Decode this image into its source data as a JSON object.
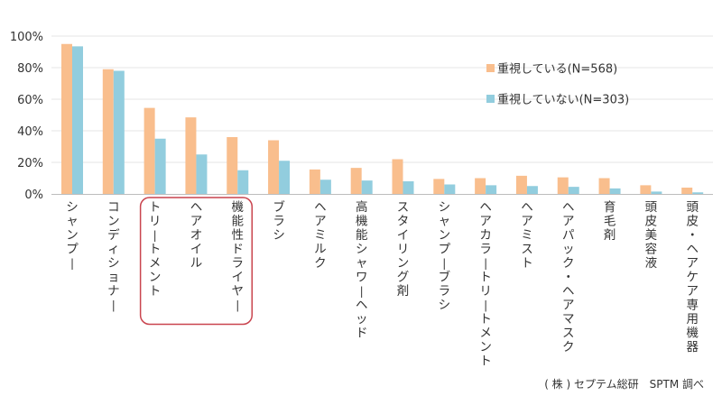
{
  "chart_data": {
    "type": "bar",
    "categories": [
      "シャンプー",
      "コンディショナー",
      "トリートメント",
      "ヘアオイル",
      "機能性ドライヤー",
      "ブラシ",
      "ヘアミルク",
      "高機能シャワーヘッド",
      "スタイリング剤",
      "シャンプーブラシ",
      "ヘアカラートリートメント",
      "ヘアミスト",
      "ヘアパック・ヘアマスク",
      "育毛剤",
      "頭皮美容液",
      "頭皮・ヘアケア専用機器"
    ],
    "series": [
      {
        "name": "重視している(N=568)",
        "color": "#F9BE8D",
        "values": [
          95,
          79,
          54.5,
          48.5,
          36,
          34,
          15.5,
          16.5,
          22,
          9.5,
          10,
          11.5,
          10.5,
          10,
          5.5,
          4
        ]
      },
      {
        "name": "重視していない(N=303)",
        "color": "#92CDDE",
        "values": [
          93.5,
          78,
          35,
          25,
          15,
          21,
          9,
          8.5,
          8,
          6,
          5.5,
          5,
          4.5,
          3.5,
          1.5,
          1
        ]
      }
    ],
    "ylim": [
      0,
      100
    ],
    "yticks": [
      "0%",
      "20%",
      "40%",
      "60%",
      "80%",
      "100%"
    ],
    "grid": true,
    "legend_position": "top-right",
    "highlighted_categories": [
      "トリートメント",
      "ヘアオイル",
      "機能性ドライヤー"
    ],
    "highlight_color": "#C9444E"
  },
  "source_note": "( 株 ) セプテム総研　SPTM 調べ"
}
